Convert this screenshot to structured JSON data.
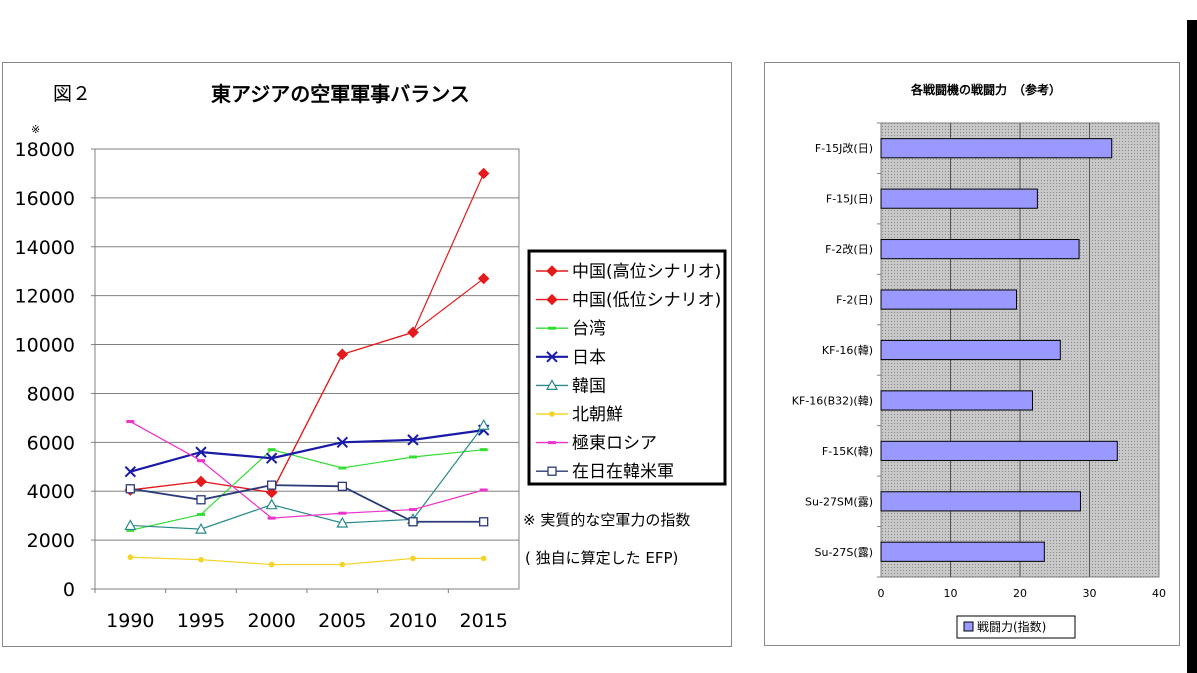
{
  "chart_data": [
    {
      "type": "line",
      "figure_label": "図２",
      "title": "東アジアの空軍軍事バランス",
      "y_axis_note": "※",
      "footnote_line1": "※ 実質的な空軍力の指数",
      "footnote_line2": "( 独自に算定した EFP)",
      "categories": [
        "1990",
        "1995",
        "2000",
        "2005",
        "2010",
        "2015"
      ],
      "ylim": [
        0,
        18000
      ],
      "y_ticks": [
        "0",
        "2000",
        "4000",
        "6000",
        "8000",
        "10000",
        "12000",
        "14000",
        "16000",
        "18000"
      ],
      "grid": "horizontal only",
      "legend_position": "right",
      "series": [
        {
          "name": "中国(高位シナリオ)",
          "color": "#e41a1c",
          "marker": "diamond",
          "values": [
            4050,
            4400,
            3950,
            9600,
            10500,
            17000
          ]
        },
        {
          "name": "中国(低位シナリオ)",
          "color": "#e41a1c",
          "marker": "diamond",
          "values": [
            4050,
            4400,
            3950,
            9600,
            10500,
            12700
          ]
        },
        {
          "name": "台湾",
          "color": "#33dd33",
          "marker": "dash",
          "values": [
            2400,
            3050,
            5700,
            4950,
            5400,
            5700
          ]
        },
        {
          "name": "日本",
          "color": "#1a1aa8",
          "marker": "x",
          "values": [
            4800,
            5600,
            5350,
            6000,
            6100,
            6500
          ]
        },
        {
          "name": "韓国",
          "color": "#2a8a8a",
          "marker": "triangle",
          "values": [
            2600,
            2450,
            3450,
            2700,
            2850,
            6700
          ]
        },
        {
          "name": "北朝鮮",
          "color": "#f5d324",
          "marker": "dot",
          "values": [
            1300,
            1200,
            1000,
            1000,
            1250,
            1250
          ]
        },
        {
          "name": "極東ロシア",
          "color": "#ee33cc",
          "marker": "dash",
          "values": [
            6850,
            5250,
            2900,
            3100,
            3250,
            4050
          ]
        },
        {
          "name": "在日在韓米軍",
          "color": "#2a3a7a",
          "marker": "square",
          "values": [
            4100,
            3650,
            4250,
            4200,
            2750,
            2750
          ]
        }
      ]
    },
    {
      "type": "bar",
      "orientation": "horizontal",
      "title": "各戦闘機の戦闘力　（参考）",
      "categories": [
        "F-15J改(日)",
        "F-15J(日)",
        "F-2改(日)",
        "F-2(日)",
        "KF-16(韓)",
        "KF-16(B32)(韓)",
        "F-15K(韓)",
        "Su-27SM(露)",
        "Su-27S(露)"
      ],
      "values": [
        33.2,
        22.5,
        28.5,
        19.5,
        25.8,
        21.8,
        34.0,
        28.7,
        23.5
      ],
      "xlim": [
        0,
        40
      ],
      "x_ticks": [
        "0",
        "10",
        "20",
        "30",
        "40"
      ],
      "legend": "戦闘力(指数)",
      "bar_color": "#9999ff",
      "plot_background": "#c0c0c0"
    }
  ]
}
